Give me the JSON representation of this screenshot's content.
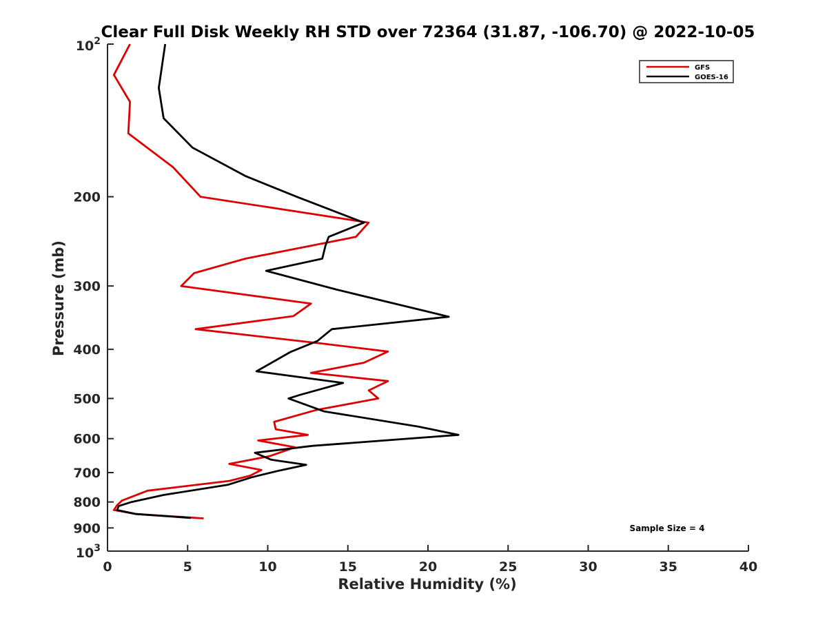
{
  "chart_data": {
    "type": "line",
    "title": "Clear Full Disk Weekly RH STD over 72364 (31.87, -106.70) @ 2022-10-05",
    "xlabel": "Relative Humidity (%)",
    "ylabel": "Pressure (mb)",
    "xlim": [
      0,
      40
    ],
    "ylim": [
      100,
      1000
    ],
    "y_scale": "log",
    "y_reversed": true,
    "x_ticks": [
      0,
      5,
      10,
      15,
      20,
      25,
      30,
      35,
      40
    ],
    "x_tick_labels": [
      "0",
      "5",
      "10",
      "15",
      "20",
      "25",
      "30",
      "35",
      "40"
    ],
    "y_ticks": [
      100,
      200,
      300,
      400,
      500,
      600,
      700,
      800,
      900,
      1000
    ],
    "y_tick_labels": [
      {
        "base": "10",
        "exp": "2"
      },
      {
        "base": "200",
        "exp": ""
      },
      {
        "base": "300",
        "exp": ""
      },
      {
        "base": "400",
        "exp": ""
      },
      {
        "base": "500",
        "exp": ""
      },
      {
        "base": "600",
        "exp": ""
      },
      {
        "base": "700",
        "exp": ""
      },
      {
        "base": "800",
        "exp": ""
      },
      {
        "base": "900",
        "exp": ""
      },
      {
        "base": "10",
        "exp": "3"
      }
    ],
    "grid": false,
    "legend_position": "top-right",
    "annotation": "Sample Size = 4",
    "series": [
      {
        "name": "GFS",
        "color": "#dd0000",
        "points": [
          [
            1.4,
            100
          ],
          [
            0.4,
            115
          ],
          [
            1.4,
            130
          ],
          [
            1.3,
            150
          ],
          [
            4.1,
            175
          ],
          [
            5.8,
            200
          ],
          [
            16.3,
            225
          ],
          [
            15.5,
            240
          ],
          [
            8.6,
            265
          ],
          [
            5.4,
            283
          ],
          [
            4.6,
            300
          ],
          [
            12.7,
            325
          ],
          [
            11.6,
            344
          ],
          [
            5.5,
            365
          ],
          [
            13.5,
            390
          ],
          [
            17.5,
            404
          ],
          [
            16.0,
            425
          ],
          [
            12.7,
            445
          ],
          [
            17.5,
            462
          ],
          [
            16.3,
            482
          ],
          [
            16.9,
            500
          ],
          [
            13.0,
            527
          ],
          [
            10.4,
            556
          ],
          [
            10.5,
            575
          ],
          [
            12.5,
            590
          ],
          [
            9.4,
            605
          ],
          [
            11.7,
            624
          ],
          [
            10.1,
            650
          ],
          [
            7.6,
            673
          ],
          [
            9.6,
            692
          ],
          [
            8.9,
            710
          ],
          [
            7.6,
            727
          ],
          [
            2.5,
            760
          ],
          [
            0.9,
            795
          ],
          [
            0.6,
            812
          ],
          [
            0.4,
            830
          ],
          [
            1.8,
            845
          ],
          [
            6.0,
            862
          ]
        ]
      },
      {
        "name": "GOES-16",
        "color": "#000000",
        "points": [
          [
            3.6,
            100
          ],
          [
            3.2,
            122
          ],
          [
            3.5,
            140
          ],
          [
            5.3,
            160
          ],
          [
            8.6,
            182
          ],
          [
            11.8,
            200
          ],
          [
            16.0,
            225
          ],
          [
            13.8,
            240
          ],
          [
            13.6,
            250
          ],
          [
            13.4,
            265
          ],
          [
            9.9,
            280
          ],
          [
            14.3,
            305
          ],
          [
            21.3,
            345
          ],
          [
            14.0,
            365
          ],
          [
            13.1,
            385
          ],
          [
            11.4,
            405
          ],
          [
            9.3,
            442
          ],
          [
            14.7,
            466
          ],
          [
            12.0,
            492
          ],
          [
            11.3,
            500
          ],
          [
            13.5,
            530
          ],
          [
            19.4,
            568
          ],
          [
            21.9,
            590
          ],
          [
            12.8,
            620
          ],
          [
            9.2,
            640
          ],
          [
            10.2,
            660
          ],
          [
            12.4,
            676
          ],
          [
            10.7,
            694
          ],
          [
            9.0,
            715
          ],
          [
            7.5,
            740
          ],
          [
            3.5,
            775
          ],
          [
            1.5,
            800
          ],
          [
            0.7,
            815
          ],
          [
            0.6,
            830
          ],
          [
            1.8,
            845
          ],
          [
            5.2,
            860
          ]
        ]
      }
    ]
  }
}
